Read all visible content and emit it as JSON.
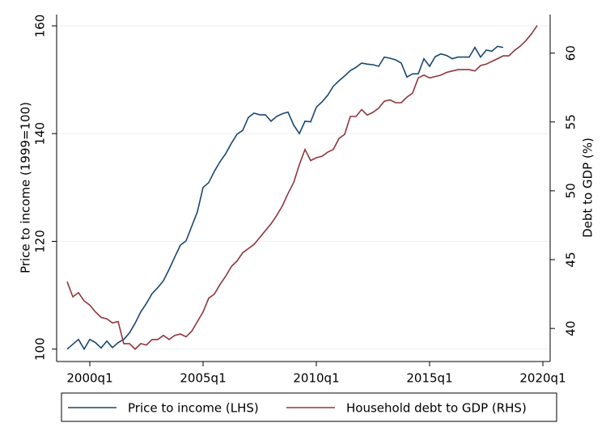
{
  "chart_data": {
    "type": "line",
    "ylabel": "Price to income (1999=100)",
    "y2label": "Debt to GDP (%)",
    "categories": [
      null,
      null,
      null,
      null,
      "2000q1",
      null,
      null,
      null,
      null,
      null,
      null,
      null,
      null,
      null,
      null,
      null,
      null,
      null,
      null,
      null,
      null,
      null,
      null,
      null,
      "2005q1",
      null,
      null,
      null,
      null,
      null,
      null,
      null,
      null,
      null,
      null,
      null,
      null,
      null,
      null,
      null,
      null,
      null,
      null,
      null,
      "2010q1",
      null,
      null,
      null,
      null,
      null,
      null,
      null,
      null,
      null,
      null,
      null,
      null,
      null,
      null,
      null,
      null,
      null,
      null,
      null,
      "2015q1",
      null,
      null,
      null,
      null,
      null,
      null,
      null,
      null,
      null,
      null,
      null,
      null,
      null,
      null,
      null,
      null,
      null,
      null,
      null,
      "2020q1"
    ],
    "series": [
      {
        "name": "Price to income (LHS)",
        "color": "#1a476f",
        "axis": "y",
        "values": [
          100,
          100.9,
          101.8,
          100,
          101.8,
          101.2,
          100.2,
          101.5,
          100.3,
          101.2,
          101.8,
          103,
          104.8,
          106.9,
          108.5,
          110.3,
          111.4,
          112.7,
          114.8,
          117.1,
          119.3,
          120.1,
          122.8,
          125.5,
          130,
          130.9,
          133,
          134.8,
          136.3,
          138.2,
          139.9,
          140.6,
          143,
          143.8,
          143.5,
          143.5,
          142.3,
          143.2,
          143.7,
          144,
          141.6,
          140,
          142.3,
          142.2,
          144.9,
          145.9,
          147.1,
          148.8,
          149.8,
          150.7,
          151.7,
          152.3,
          153.1,
          152.9,
          152.8,
          152.5,
          154.2,
          154,
          153.7,
          153.1,
          150.5,
          151.1,
          151.1,
          153.9,
          152.5,
          154.3,
          154.8,
          154.5,
          153.9,
          154.2,
          154.2,
          154.2,
          156,
          154.2,
          155.5,
          155.3,
          156.2,
          156,
          null,
          null,
          null,
          null,
          null,
          null,
          null
        ]
      },
      {
        "name": "Household debt to GDP (RHS)",
        "color": "#90353b",
        "axis": "y2",
        "values": [
          43.4,
          42.3,
          42.6,
          42,
          41.7,
          41.2,
          40.8,
          40.7,
          40.4,
          40.5,
          38.9,
          38.9,
          38.5,
          38.9,
          38.8,
          39.2,
          39.2,
          39.5,
          39.2,
          39.5,
          39.6,
          39.4,
          39.8,
          40.5,
          41.2,
          42.2,
          42.5,
          43.2,
          43.8,
          44.5,
          44.9,
          45.5,
          45.8,
          46.1,
          46.6,
          47.1,
          47.6,
          48.2,
          48.9,
          49.8,
          50.6,
          51.9,
          53,
          52.2,
          52.4,
          52.5,
          52.8,
          53,
          53.8,
          54.1,
          55.4,
          55.4,
          55.9,
          55.5,
          55.7,
          56,
          56.5,
          56.6,
          56.4,
          56.4,
          56.8,
          57.1,
          58.2,
          58.4,
          58.2,
          58.3,
          58.4,
          58.6,
          58.7,
          58.8,
          58.8,
          58.8,
          58.7,
          59.1,
          59.2,
          59.4,
          59.6,
          59.8,
          59.8,
          60.2,
          60.5,
          60.9,
          61.4,
          62,
          null
        ]
      }
    ],
    "ylim": [
      97.7,
      162.1
    ],
    "yticks": [
      100,
      120,
      140,
      160
    ],
    "y2lim": [
      37.6,
      62.8
    ],
    "y2ticks": [
      40,
      45,
      50,
      55,
      60
    ],
    "grid": true,
    "legend": "bottom"
  }
}
